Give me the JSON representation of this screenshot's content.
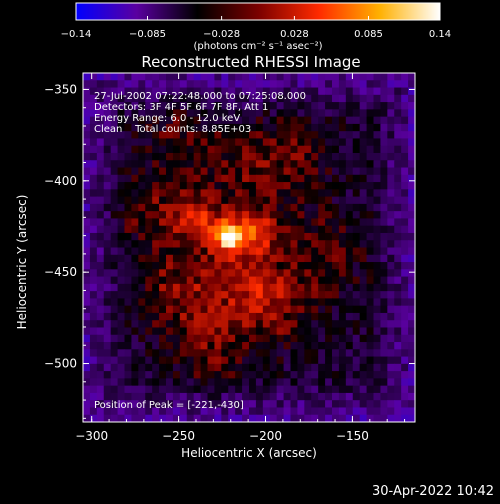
{
  "chart_data": {
    "type": "heatmap",
    "title": "Reconstructed RHESSI Image",
    "xlabel": "Heliocentric X (arcsec)",
    "ylabel": "Heliocentric Y (arcsec)",
    "xlim": [
      -305,
      -114
    ],
    "ylim": [
      -532,
      -341
    ],
    "x_ticks": [
      -300,
      -250,
      -200,
      -150
    ],
    "y_ticks": [
      -350,
      -400,
      -450,
      -500
    ],
    "x_tick_labels": [
      "−300",
      "−250",
      "−200",
      "−150"
    ],
    "y_tick_labels": [
      "−350",
      "−400",
      "−450",
      "−500"
    ],
    "colorbar": {
      "range": [
        -0.14,
        0.14
      ],
      "ticks": [
        -0.14,
        -0.085,
        -0.028,
        0.028,
        0.085,
        0.14
      ],
      "tick_labels": [
        "−0.14",
        "−0.085",
        "−0.028",
        "0.028",
        "0.085",
        "0.14"
      ],
      "unit_label": "(photons cm⁻² s⁻¹ asec⁻²)",
      "colors": [
        "#0000ff",
        "#5a00a0",
        "#000000",
        "#7a0000",
        "#ff2a00",
        "#ffb000",
        "#ffffff"
      ]
    },
    "annotations": [
      "27-Jul-2002 07:22:48.000 to 07:25:08.000",
      "Detectors: 3F 4F 5F 6F 7F 8F, Att 1",
      "Energy Range: 6.0 - 12.0 keV",
      "Clean    Total counts: 8.85E+03"
    ],
    "peak_label": "Position of Peak = [-221,-430]",
    "peak": {
      "x": -221,
      "y": -430,
      "value": 0.14
    },
    "sources": [
      {
        "x": -221,
        "y": -430,
        "amplitude": 0.14,
        "width": 6
      },
      {
        "x": -205,
        "y": -428,
        "amplitude": 0.08,
        "width": 8
      },
      {
        "x": -238,
        "y": -422,
        "amplitude": 0.07,
        "width": 10
      },
      {
        "x": -215,
        "y": -452,
        "amplitude": 0.06,
        "width": 14
      },
      {
        "x": -250,
        "y": -460,
        "amplitude": 0.05,
        "width": 16
      },
      {
        "x": -195,
        "y": -470,
        "amplitude": 0.05,
        "width": 14
      },
      {
        "x": -170,
        "y": -440,
        "amplitude": 0.04,
        "width": 18
      },
      {
        "x": -230,
        "y": -490,
        "amplitude": 0.04,
        "width": 16
      },
      {
        "x": -210,
        "y": -395,
        "amplitude": 0.04,
        "width": 18
      },
      {
        "x": -265,
        "y": -415,
        "amplitude": 0.04,
        "width": 16
      },
      {
        "x": -180,
        "y": -385,
        "amplitude": 0.03,
        "width": 14
      },
      {
        "x": -250,
        "y": -375,
        "amplitude": 0.03,
        "width": 14
      }
    ],
    "grid": false,
    "legend": "none"
  },
  "timestamp": "30-Apr-2022 10:42"
}
